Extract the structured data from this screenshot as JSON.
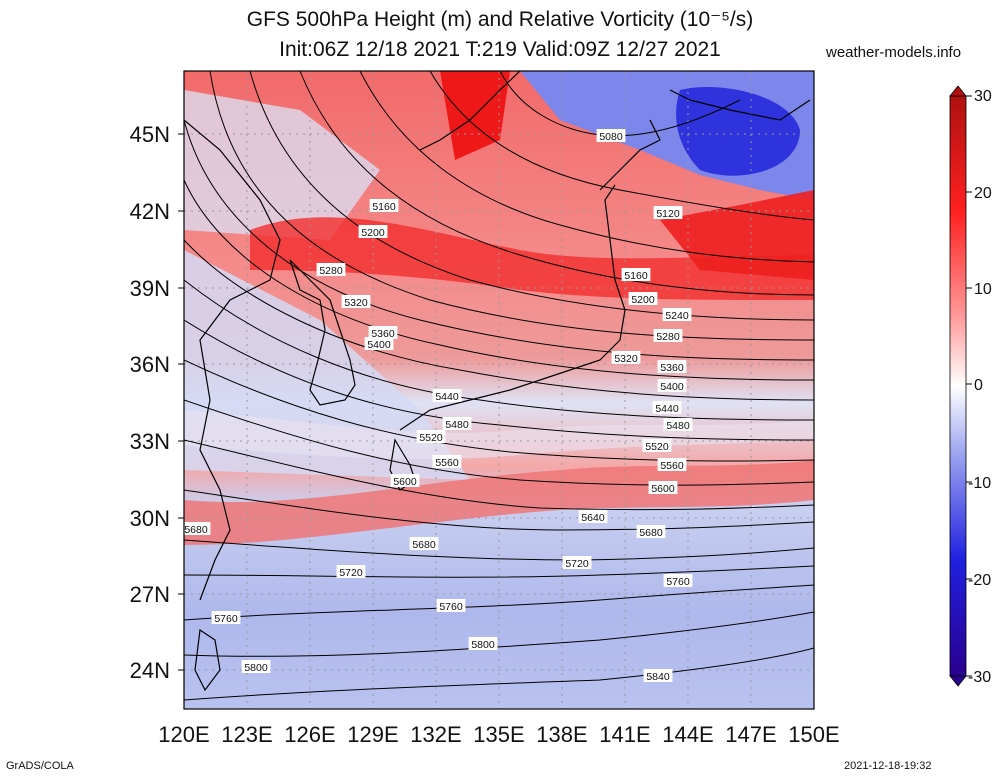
{
  "header": {
    "title_line1": "GFS 500hPa Height (m) and Relative Vorticity (10⁻⁵/s)",
    "title_line2": "Init:06Z 12/18 2021 T:219 Valid:09Z 12/27 2021",
    "site": "weather-models.info"
  },
  "footer": {
    "left": "GrADS/COLA",
    "right": "2021-12-18-19:32"
  },
  "map": {
    "lat_labels": [
      "45N",
      "42N",
      "39N",
      "36N",
      "33N",
      "30N",
      "27N",
      "24N"
    ],
    "lon_labels": [
      "120E",
      "123E",
      "126E",
      "129E",
      "132E",
      "135E",
      "138E",
      "141E",
      "144E",
      "147E",
      "150E"
    ],
    "contour_labels": [
      {
        "text": "5080"
      },
      {
        "text": "5120"
      },
      {
        "text": "5160"
      },
      {
        "text": "5200"
      },
      {
        "text": "5280"
      },
      {
        "text": "5160"
      },
      {
        "text": "5200"
      },
      {
        "text": "5240"
      },
      {
        "text": "5320"
      },
      {
        "text": "5360"
      },
      {
        "text": "5400"
      },
      {
        "text": "5280"
      },
      {
        "text": "5320"
      },
      {
        "text": "5360"
      },
      {
        "text": "5400"
      },
      {
        "text": "5440"
      },
      {
        "text": "5440"
      },
      {
        "text": "5480"
      },
      {
        "text": "5480"
      },
      {
        "text": "5520"
      },
      {
        "text": "5520"
      },
      {
        "text": "5560"
      },
      {
        "text": "5560"
      },
      {
        "text": "5600"
      },
      {
        "text": "5600"
      },
      {
        "text": "5640"
      },
      {
        "text": "5680"
      },
      {
        "text": "5680"
      },
      {
        "text": "5680"
      },
      {
        "text": "5720"
      },
      {
        "text": "5720"
      },
      {
        "text": "5760"
      },
      {
        "text": "5760"
      },
      {
        "text": "5760"
      },
      {
        "text": "5800"
      },
      {
        "text": "5800"
      },
      {
        "text": "5840"
      }
    ]
  },
  "colorbar": {
    "labels": [
      "30",
      "20",
      "10",
      "0",
      "-10",
      "-20",
      "-30"
    ],
    "colors": {
      "max": "#b01010",
      "pos": "#ff2020",
      "zero": "#ffffff",
      "neg": "#2020e0",
      "min": "#2a0090"
    }
  }
}
